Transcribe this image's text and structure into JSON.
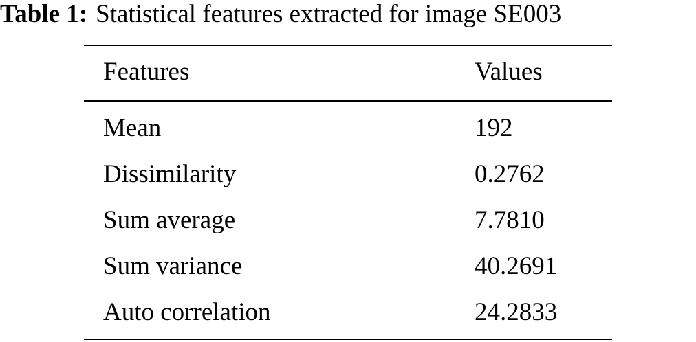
{
  "caption": {
    "label": "Table 1:",
    "text": "Statistical features extracted for image SE003"
  },
  "table": {
    "header": [
      "Features",
      "Values"
    ],
    "rows": [
      [
        "Mean",
        "192"
      ],
      [
        "Dissimilarity",
        "0.2762"
      ],
      [
        "Sum average",
        "7.7810"
      ],
      [
        "Sum variance",
        "40.2691"
      ],
      [
        "Auto correlation",
        "24.2833"
      ]
    ]
  }
}
